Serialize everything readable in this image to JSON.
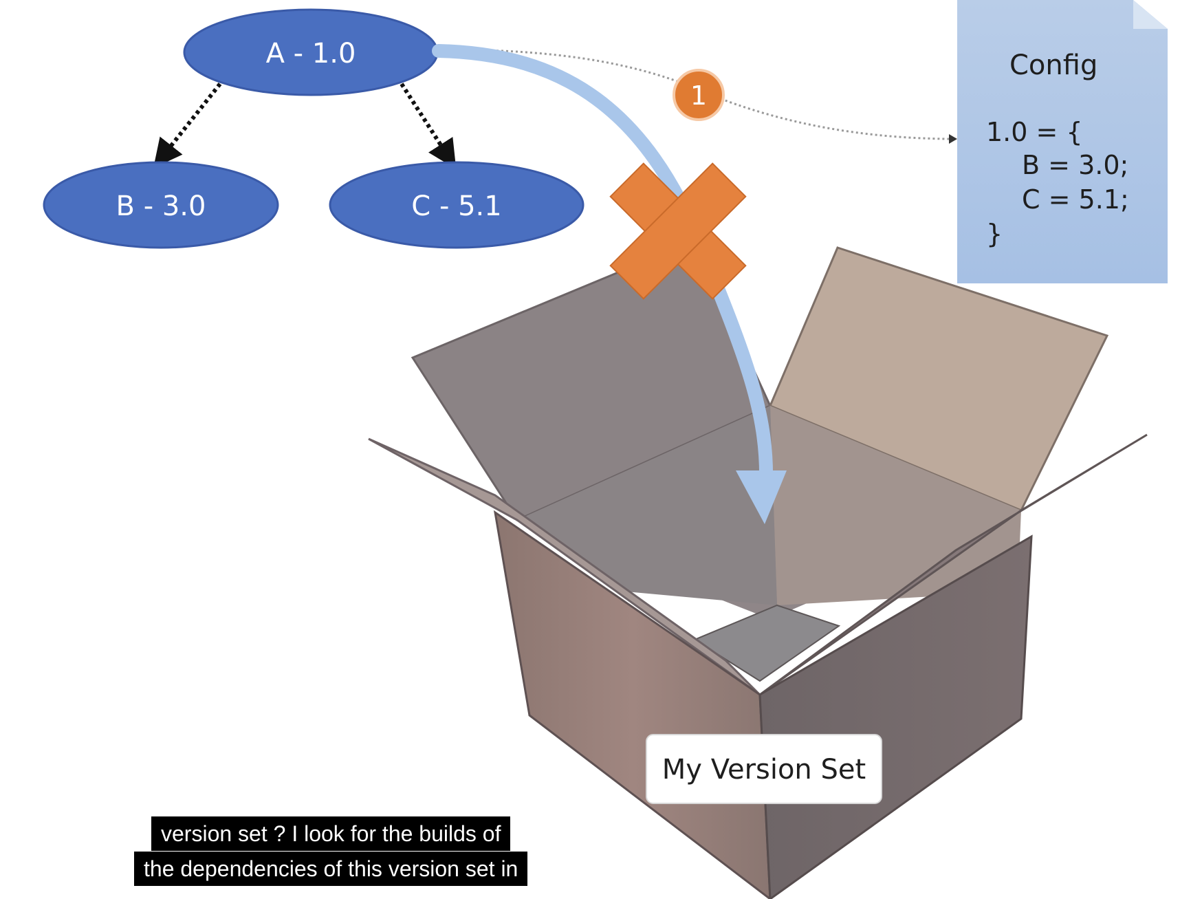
{
  "nodes": {
    "a": "A - 1.0",
    "b": "B - 3.0",
    "c": "C - 5.1"
  },
  "step_badge": "1",
  "config": {
    "title": "Config",
    "lines": [
      "1.0 = {",
      "B = 3.0;",
      "C = 5.1;",
      "}"
    ]
  },
  "box_label": "My Version Set",
  "caption": {
    "line1": "version set ? I look for the builds of",
    "line2": "the dependencies of this version set in"
  },
  "colors": {
    "node_fill": "#4a6fc0",
    "arrow": "#a9c6ea",
    "cross": "#e5823e",
    "config_bg": "#b7cde9"
  }
}
